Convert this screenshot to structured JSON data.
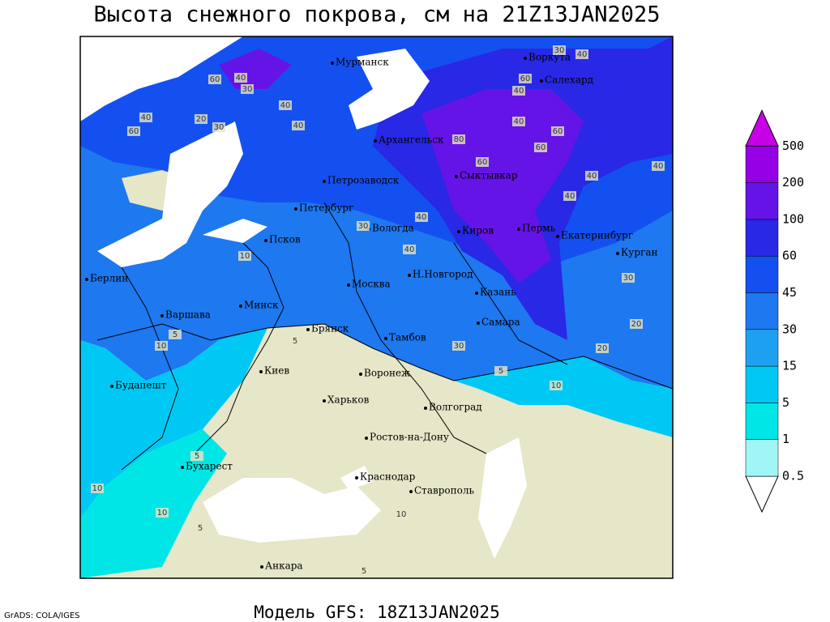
{
  "header": {
    "title": "Высота снежного покрова, см на 21Z13JAN2025"
  },
  "footer": {
    "model": "Модель GFS: 18Z13JAN2025",
    "credit": "GrADS: COLA/IGES"
  },
  "cities": [
    "Мурманск",
    "Воркута",
    "Салехард",
    "Архангельск",
    "Петрозаводск",
    "Сыктывкар",
    "Петербург",
    "Вологда",
    "Киров",
    "Пермь",
    "Екатеринбург",
    "Псков",
    "Курган",
    "Берлин",
    "Н.Новгород",
    "Москва",
    "Казань",
    "Варшава",
    "Минск",
    "Самара",
    "Брянск",
    "Тамбов",
    "Киев",
    "Воронеж",
    "Будапешт",
    "Харьков",
    "Волгоград",
    "Ростов-на-Дону",
    "Бухарест",
    "Краснодар",
    "Ставрополь",
    "Анкара"
  ],
  "contour_labels": [
    40,
    30,
    40,
    60,
    40,
    60,
    40,
    20,
    30,
    40,
    40,
    60,
    40,
    30,
    60,
    80,
    60,
    60,
    40,
    40,
    40,
    30,
    40,
    30,
    40,
    10,
    5,
    10,
    5,
    20,
    20,
    30,
    10,
    5,
    5,
    10,
    10,
    5,
    10,
    5
  ],
  "legend": {
    "levels": [
      0.5,
      1,
      5,
      15,
      30,
      45,
      60,
      100,
      200,
      500
    ],
    "colors": [
      "#ffffff",
      "#a0f5f5",
      "#00e6e6",
      "#00c8f5",
      "#1ea0f0",
      "#1e78f0",
      "#1450f0",
      "#2828e6",
      "#6414e6",
      "#9600e6",
      "#c800e6"
    ]
  }
}
